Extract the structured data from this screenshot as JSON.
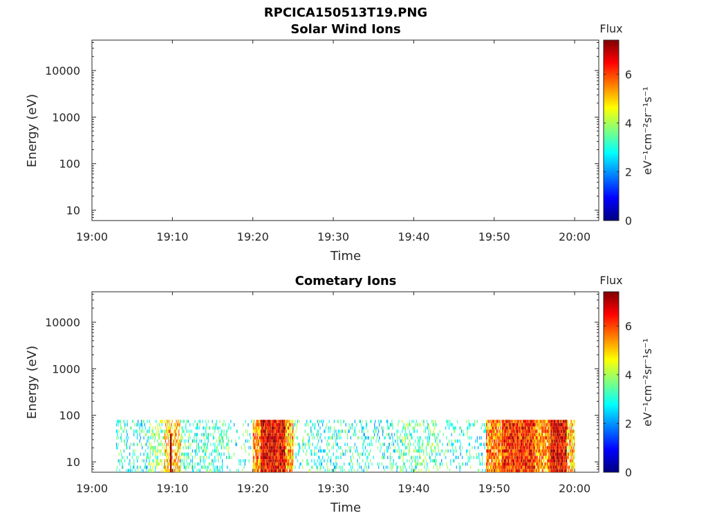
{
  "figure_title": "RPCICA150513T19.PNG",
  "chart_data": [
    {
      "type": "heatmap",
      "title": "Solar Wind Ions",
      "xlabel": "Time",
      "ylabel": "Energy (eV)",
      "x_range": [
        "19:00",
        "20:03"
      ],
      "x_ticks": [
        "19:00",
        "19:10",
        "19:20",
        "19:30",
        "19:40",
        "19:50",
        "20:00"
      ],
      "y_scale": "log",
      "y_range_eV": [
        6,
        45000
      ],
      "y_ticks": [
        "10",
        "100",
        "1000",
        "10000"
      ],
      "colorbar": {
        "label_top": "Flux",
        "label_side": "eV⁻¹cm⁻²sr⁻¹s⁻¹",
        "range": [
          0,
          7.4
        ],
        "ticks": [
          "0",
          "2",
          "4",
          "6"
        ],
        "colormap": "jet"
      },
      "observations": []
    },
    {
      "type": "heatmap",
      "title": "Cometary Ions",
      "xlabel": "Time",
      "ylabel": "Energy (eV)",
      "x_range": [
        "19:00",
        "20:03"
      ],
      "x_ticks": [
        "19:00",
        "19:10",
        "19:20",
        "19:30",
        "19:40",
        "19:50",
        "20:00"
      ],
      "y_scale": "log",
      "y_range_eV": [
        6,
        45000
      ],
      "y_ticks": [
        "10",
        "100",
        "1000",
        "10000"
      ],
      "colorbar": {
        "label_top": "Flux",
        "label_side": "eV⁻¹cm⁻²sr⁻¹s⁻¹",
        "range": [
          0,
          7.4
        ],
        "ticks": [
          "0",
          "2",
          "4",
          "6"
        ],
        "colormap": "jet"
      },
      "energy_upper_limit_eV": 80,
      "observations": [
        {
          "start": "19:03",
          "end": "19:07",
          "flux_level": 3.0,
          "density": 0.25
        },
        {
          "start": "19:07",
          "end": "19:09",
          "flux_level": 3.8,
          "density": 0.4
        },
        {
          "start": "19:09",
          "end": "19:11",
          "flux_level": 5.0,
          "density": 0.6
        },
        {
          "start": "19:11",
          "end": "19:17",
          "flux_level": 3.2,
          "density": 0.3
        },
        {
          "start": "19:17",
          "end": "19:20",
          "flux_level": 3.0,
          "density": 0.12
        },
        {
          "start": "19:20",
          "end": "19:21",
          "flux_level": 5.4,
          "density": 0.9
        },
        {
          "start": "19:21",
          "end": "19:24",
          "flux_level": 6.6,
          "density": 1.0
        },
        {
          "start": "19:24",
          "end": "19:25",
          "flux_level": 5.2,
          "density": 0.85
        },
        {
          "start": "19:25",
          "end": "19:28",
          "flux_level": 3.2,
          "density": 0.2
        },
        {
          "start": "19:28",
          "end": "19:33",
          "flux_level": 3.0,
          "density": 0.25
        },
        {
          "start": "19:33",
          "end": "19:38",
          "flux_level": 3.0,
          "density": 0.22
        },
        {
          "start": "19:38",
          "end": "19:43",
          "flux_level": 3.4,
          "density": 0.3
        },
        {
          "start": "19:43",
          "end": "19:49",
          "flux_level": 3.0,
          "density": 0.18
        },
        {
          "start": "19:49",
          "end": "19:51",
          "flux_level": 5.6,
          "density": 0.9
        },
        {
          "start": "19:51",
          "end": "19:55",
          "flux_level": 6.2,
          "density": 1.0
        },
        {
          "start": "19:55",
          "end": "19:57",
          "flux_level": 5.4,
          "density": 0.9
        },
        {
          "start": "19:57",
          "end": "19:59",
          "flux_level": 6.6,
          "density": 1.0
        },
        {
          "start": "19:59",
          "end": "20:00",
          "flux_level": 5.0,
          "density": 0.8
        }
      ],
      "spikes": [
        {
          "time": "19:09.8",
          "flux_level": 7.2,
          "energy_max_eV": 40
        }
      ]
    }
  ]
}
